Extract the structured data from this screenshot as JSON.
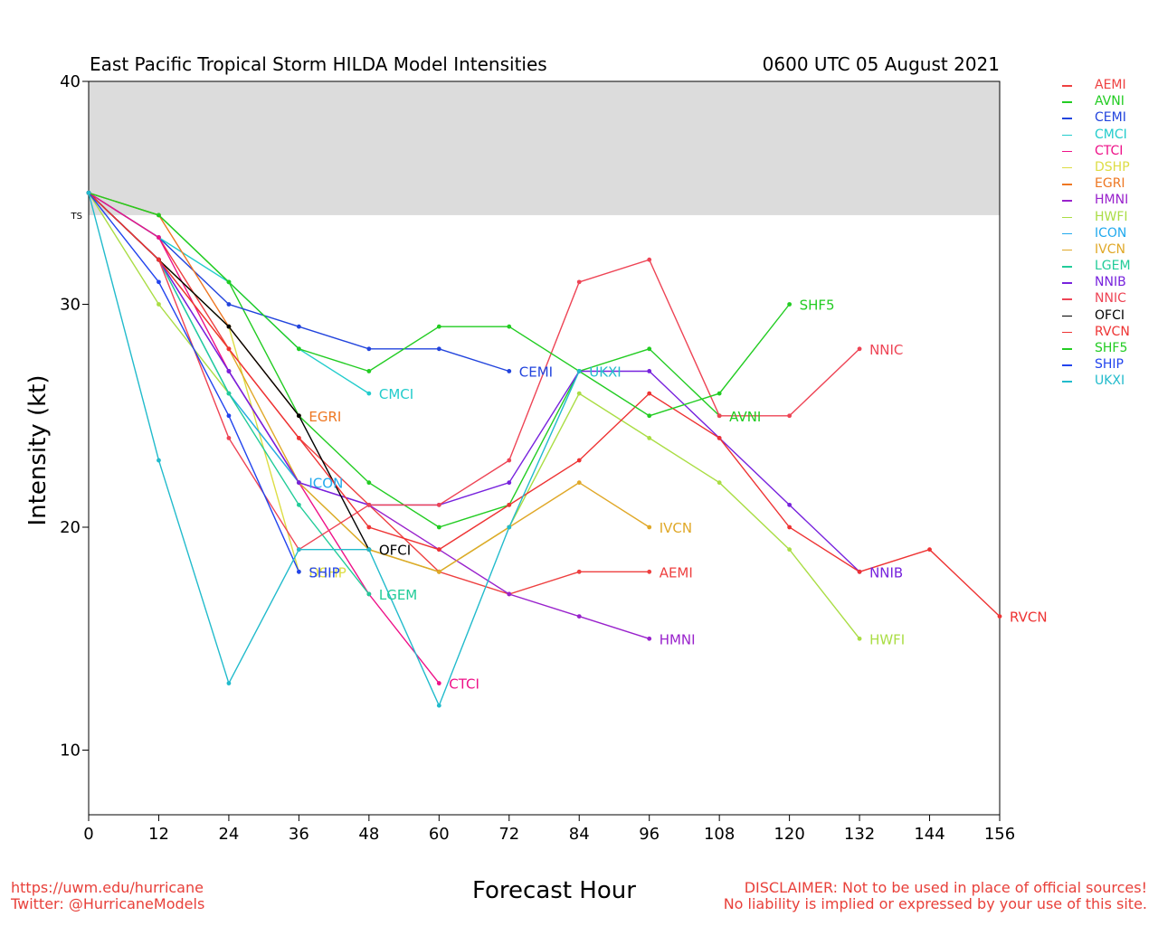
{
  "header": {
    "title": "East Pacific Tropical Storm HILDA Model Intensities",
    "datetime": "0600 UTC 05 August 2021"
  },
  "footer": {
    "url": "https://uwm.edu/hurricane",
    "twitter": "Twitter: @HurricaneModels",
    "disclaimer_line1": "DISCLAIMER: Not to be used in place of official sources!",
    "disclaimer_line2": "No liability is implied or expressed by your use of this site."
  },
  "chart_data": {
    "type": "line",
    "title": "East Pacific Tropical Storm HILDA Model Intensities",
    "xlabel": "Forecast Hour",
    "ylabel": "Intensity (kt)",
    "xlim": [
      0,
      156
    ],
    "ylim": [
      7.1,
      40
    ],
    "x_ticks": [
      0,
      12,
      24,
      36,
      48,
      60,
      72,
      84,
      96,
      108,
      120,
      132,
      144,
      156
    ],
    "y_ticks": [
      10,
      20,
      30,
      40
    ],
    "grid": false,
    "legend_position": "right",
    "shaded_band": {
      "label": "TS",
      "from": 34,
      "to": 40,
      "color": "#dcdcdc"
    },
    "series": [
      {
        "name": "AEMI",
        "color": "#ee4040",
        "x": [
          0,
          12,
          24,
          36,
          48,
          60,
          72,
          84,
          96
        ],
        "y": [
          35,
          33,
          28,
          24,
          21,
          18,
          17,
          18,
          18
        ]
      },
      {
        "name": "AVNI",
        "color": "#22cc22",
        "x": [
          0,
          12,
          24,
          36,
          48,
          60,
          72,
          84,
          96,
          108
        ],
        "y": [
          35,
          34,
          31,
          25,
          22,
          20,
          21,
          27,
          28,
          25
        ]
      },
      {
        "name": "CEMI",
        "color": "#2244dd",
        "x": [
          0,
          12,
          24,
          36,
          48,
          60,
          72
        ],
        "y": [
          35,
          33,
          30,
          29,
          28,
          28,
          27
        ]
      },
      {
        "name": "CMCI",
        "color": "#22cccc",
        "x": [
          0,
          12,
          24,
          36,
          48
        ],
        "y": [
          35,
          33,
          31,
          28,
          26
        ]
      },
      {
        "name": "CTCI",
        "color": "#ee1188",
        "x": [
          0,
          12,
          24,
          36,
          48,
          60
        ],
        "y": [
          35,
          33,
          27,
          22,
          17,
          13
        ]
      },
      {
        "name": "DSHP",
        "color": "#dddd44",
        "x": [
          0,
          12,
          24,
          36
        ],
        "y": [
          35,
          32,
          29,
          18
        ]
      },
      {
        "name": "EGRI",
        "color": "#ee7722",
        "x": [
          0,
          12,
          24,
          36
        ],
        "y": [
          35,
          34,
          29,
          25
        ]
      },
      {
        "name": "HMNI",
        "color": "#9922cc",
        "x": [
          0,
          12,
          24,
          36,
          48,
          60,
          72,
          84,
          96
        ],
        "y": [
          35,
          32,
          27,
          22,
          21,
          19,
          17,
          16,
          15
        ]
      },
      {
        "name": "HWFI",
        "color": "#aadd44",
        "x": [
          0,
          12,
          24,
          36,
          48,
          60,
          72,
          84,
          96,
          108,
          120,
          132
        ],
        "y": [
          35,
          30,
          26,
          22,
          19,
          18,
          20,
          26,
          24,
          22,
          19,
          15
        ]
      },
      {
        "name": "ICON",
        "color": "#22aaee",
        "x": [
          0,
          12,
          24,
          36
        ],
        "y": [
          35,
          32,
          26,
          22
        ]
      },
      {
        "name": "IVCN",
        "color": "#e0a828",
        "x": [
          0,
          12,
          24,
          36,
          48,
          60,
          72,
          84,
          96
        ],
        "y": [
          35,
          32,
          28,
          22,
          19,
          18,
          20,
          22,
          20
        ]
      },
      {
        "name": "LGEM",
        "color": "#22cc99",
        "x": [
          0,
          12,
          24,
          36,
          48
        ],
        "y": [
          35,
          32,
          26,
          21,
          17
        ]
      },
      {
        "name": "NNIB",
        "color": "#7722dd",
        "x": [
          0,
          12,
          24,
          36,
          48,
          60,
          72,
          84,
          96,
          108,
          120,
          132
        ],
        "y": [
          35,
          32,
          27,
          22,
          21,
          21,
          22,
          27,
          27,
          24,
          21,
          18
        ]
      },
      {
        "name": "NNIC",
        "color": "#ee4455",
        "x": [
          0,
          12,
          24,
          36,
          48,
          60,
          72,
          84,
          96,
          108,
          120,
          132
        ],
        "y": [
          35,
          32,
          24,
          19,
          21,
          21,
          23,
          31,
          32,
          25,
          25,
          28
        ]
      },
      {
        "name": "OFCI",
        "color": "#000000",
        "x": [
          0,
          12,
          24,
          36,
          48
        ],
        "y": [
          35,
          32,
          29,
          25,
          19
        ]
      },
      {
        "name": "RVCN",
        "color": "#ee3333",
        "x": [
          0,
          12,
          24,
          36,
          48,
          60,
          72,
          84,
          96,
          108,
          120,
          132,
          144,
          156
        ],
        "y": [
          35,
          32,
          28,
          24,
          20,
          19,
          21,
          23,
          26,
          24,
          20,
          18,
          19,
          16
        ]
      },
      {
        "name": "SHF5",
        "color": "#22cc22",
        "x": [
          0,
          12,
          24,
          36,
          48,
          60,
          72,
          84,
          96,
          108,
          120
        ],
        "y": [
          35,
          34,
          31,
          28,
          27,
          29,
          29,
          27,
          25,
          26,
          30
        ]
      },
      {
        "name": "SHIP",
        "color": "#2244ee",
        "x": [
          0,
          12,
          24,
          36
        ],
        "y": [
          35,
          31,
          25,
          18
        ]
      },
      {
        "name": "UKXI",
        "color": "#22bbcc",
        "x": [
          0,
          12,
          24,
          36,
          48,
          60,
          72,
          84
        ],
        "y": [
          35,
          23,
          13,
          19,
          19,
          12,
          20,
          27
        ]
      }
    ]
  }
}
